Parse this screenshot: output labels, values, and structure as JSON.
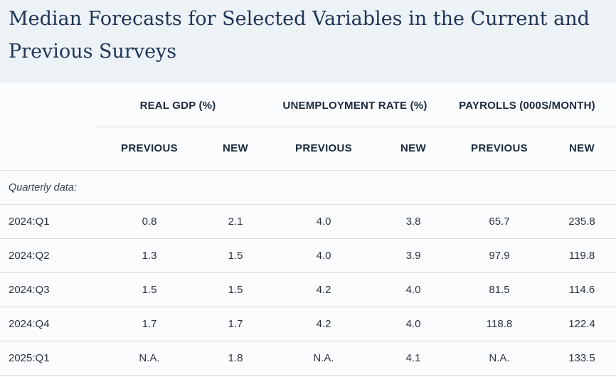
{
  "title": "Median Forecasts for Selected Variables in the Current and Previous Surveys",
  "groups": [
    "REAL GDP (%)",
    "UNEMPLOYMENT RATE (%)",
    "PAYROLLS (000S/MONTH)"
  ],
  "subheaders": [
    "PREVIOUS",
    "NEW",
    "PREVIOUS",
    "NEW",
    "PREVIOUS",
    "NEW"
  ],
  "section_label": "Quarterly data:",
  "rows": [
    {
      "label": "2024:Q1",
      "values": [
        "0.8",
        "2.1",
        "4.0",
        "3.8",
        "65.7",
        "235.8"
      ]
    },
    {
      "label": "2024:Q2",
      "values": [
        "1.3",
        "1.5",
        "4.0",
        "3.9",
        "97.9",
        "119.8"
      ]
    },
    {
      "label": "2024:Q3",
      "values": [
        "1.5",
        "1.5",
        "4.2",
        "4.0",
        "81.5",
        "114.6"
      ]
    },
    {
      "label": "2024:Q4",
      "values": [
        "1.7",
        "1.7",
        "4.2",
        "4.0",
        "118.8",
        "122.4"
      ]
    },
    {
      "label": "2025:Q1",
      "values": [
        "N.A.",
        "1.8",
        "N.A.",
        "4.1",
        "N.A.",
        "133.5"
      ]
    }
  ]
}
